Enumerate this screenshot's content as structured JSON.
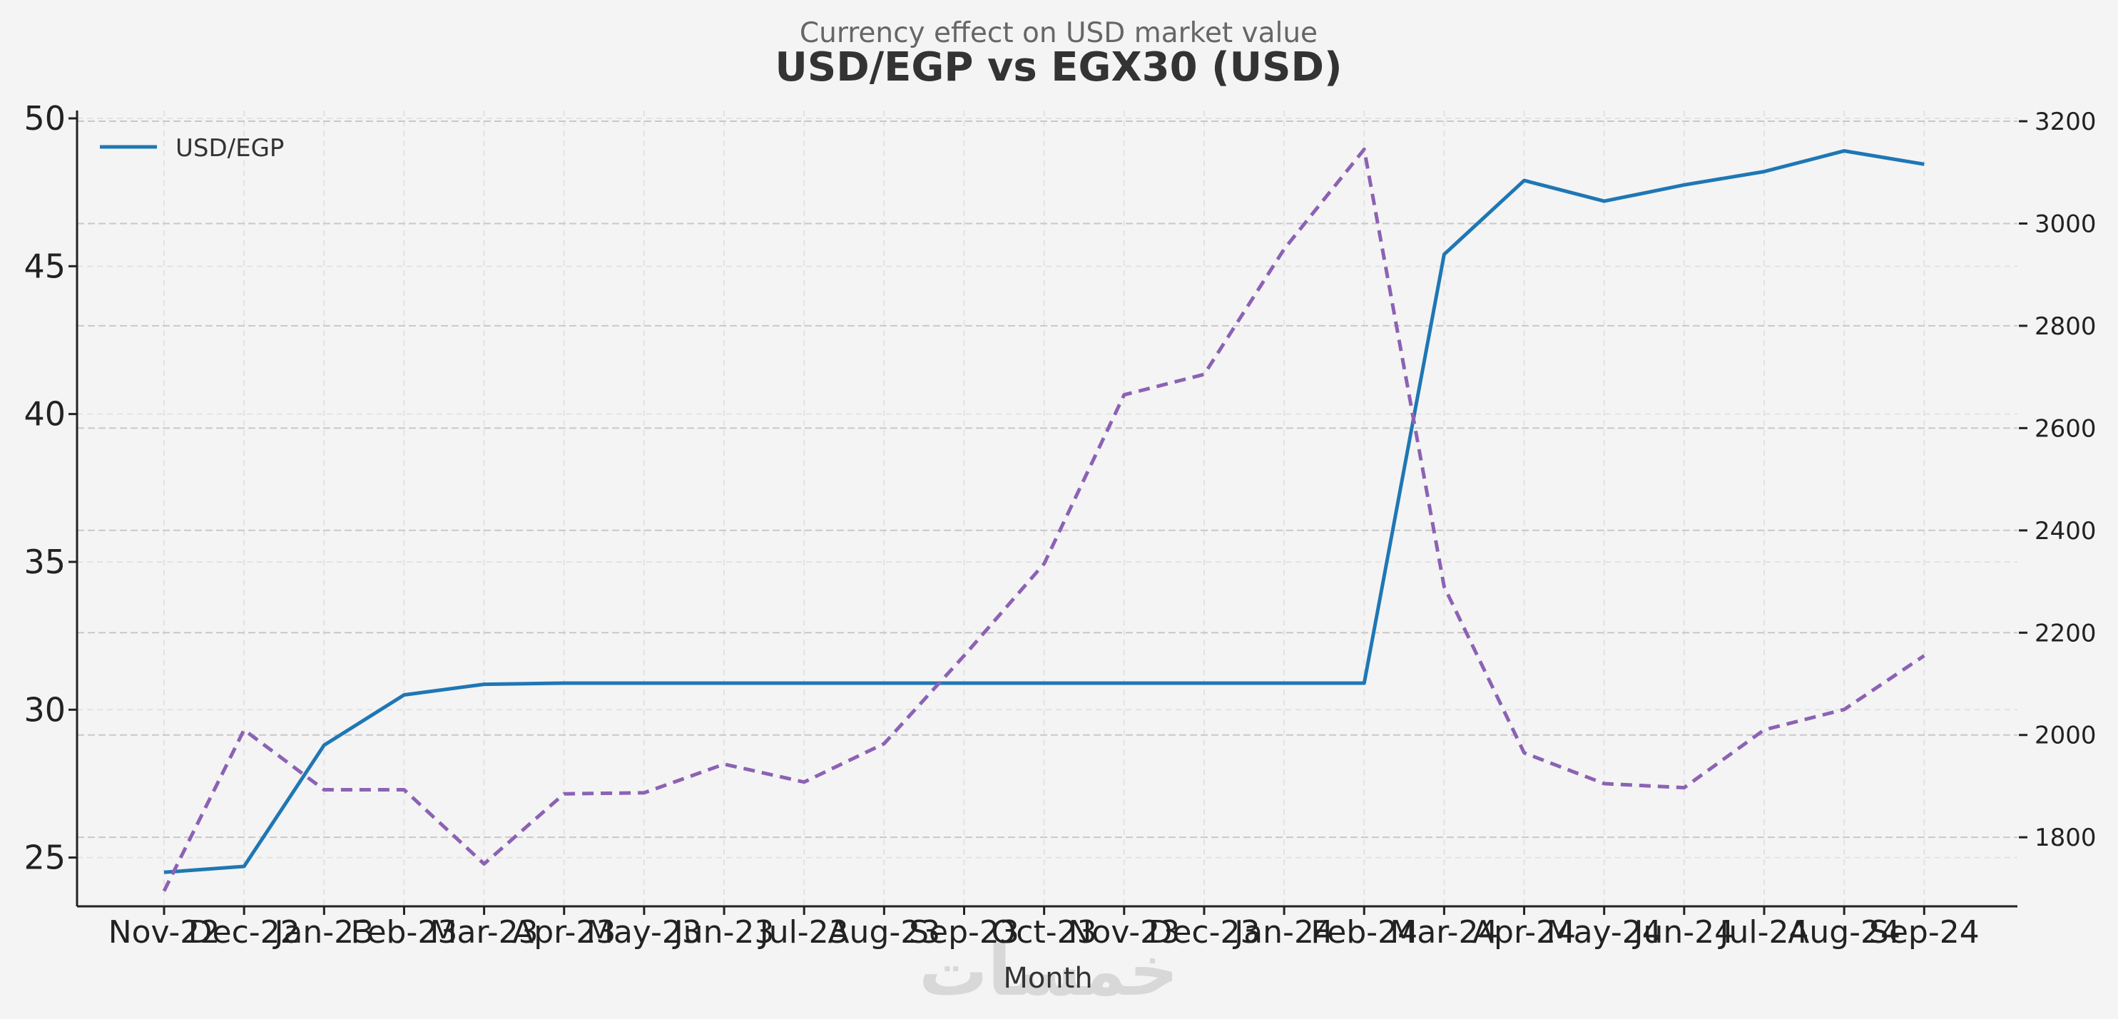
{
  "chart_data": {
    "type": "line",
    "subtitle": "Currency effect on USD market value",
    "title": "USD/EGP vs EGX30 (USD)",
    "xlabel": "Month",
    "categories": [
      "Nov-22",
      "Dec-22",
      "Jan-23",
      "Feb-23",
      "Mar-23",
      "Apr-23",
      "May-23",
      "Jun-23",
      "Jul-23",
      "Aug-23",
      "Sep-23",
      "Oct-23",
      "Nov-23",
      "Dec-23",
      "Jan-24",
      "Feb-24",
      "Mar-24",
      "Apr-24",
      "May-24",
      "Jun-24",
      "Jul-24",
      "Aug-24",
      "Sep-24"
    ],
    "y_left": {
      "ylim": [
        23.35,
        50.0
      ],
      "ticks": [
        25,
        30,
        35,
        40,
        45,
        50
      ]
    },
    "y_right": {
      "ylim": [
        1665,
        3200
      ],
      "ticks": [
        1800,
        2000,
        2200,
        2400,
        2600,
        2800,
        3000,
        3200
      ]
    },
    "grid": true,
    "legend_position": "top-left",
    "series": [
      {
        "name": "USD/EGP",
        "axis": "left",
        "color": "#1f77b4",
        "style": "solid",
        "values": [
          24.5,
          24.7,
          28.8,
          30.5,
          30.86,
          30.9,
          30.9,
          30.9,
          30.9,
          30.9,
          30.9,
          30.9,
          30.9,
          30.9,
          30.9,
          30.9,
          45.4,
          47.9,
          47.2,
          47.75,
          48.2,
          48.9,
          48.45
        ]
      },
      {
        "axis": "right",
        "color": "#8c62b4",
        "style": "dashed",
        "values": [
          1695,
          2010,
          1893,
          1893,
          1748,
          1885,
          1887,
          1943,
          1908,
          1983,
          2155,
          2335,
          2665,
          2705,
          2950,
          3145,
          2290,
          1965,
          1905,
          1897,
          2010,
          2050,
          2155
        ]
      }
    ]
  },
  "watermark": "خمسات"
}
